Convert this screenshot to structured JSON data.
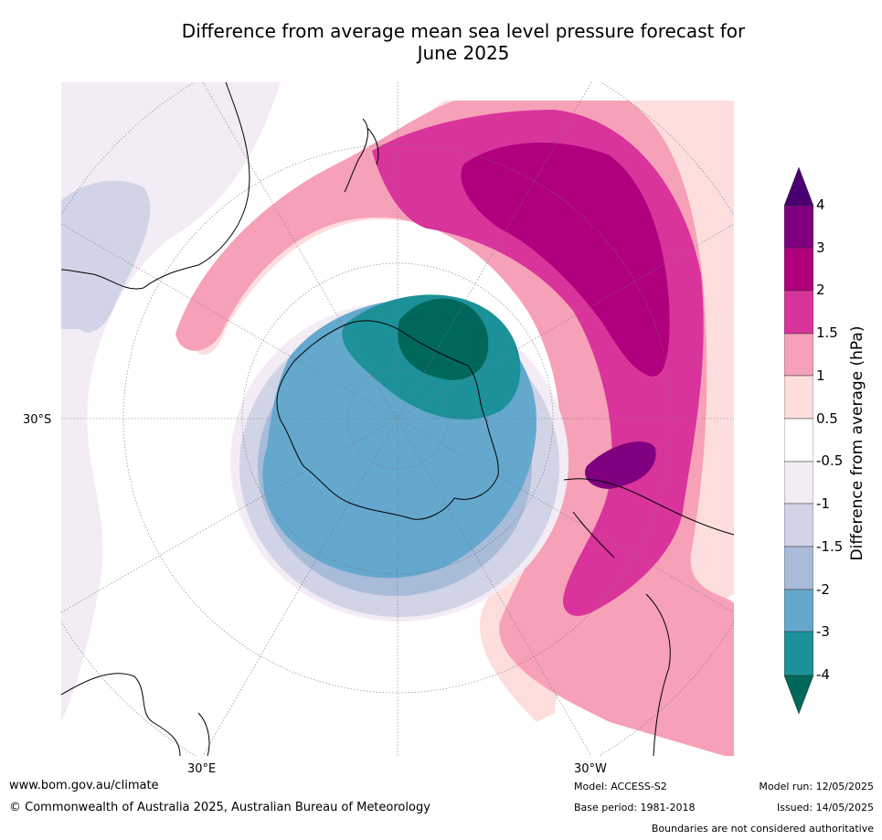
{
  "title_line1": "Difference from average mean sea level pressure forecast for",
  "title_line2": "June 2025",
  "map_labels": {
    "lat_30s": "30°S",
    "lon_30e": "30°E",
    "lon_30w": "30°W"
  },
  "colorbar": {
    "title": "Difference from average (hPa)",
    "ticks": [
      "4",
      "3",
      "2",
      "1.5",
      "1",
      "0.5",
      "-0.5",
      "-1",
      "-1.5",
      "-2",
      "-3",
      "-4"
    ],
    "colors": {
      "over": "#4a0070",
      "b3_4": "#800080",
      "b2_3": "#b0007e",
      "b15_2": "#d9349b",
      "b1_15": "#f6a1b8",
      "b05_1": "#fddedd",
      "neutral": "#ffffff",
      "bm1_m05": "#f3ecf5",
      "bm15_m1": "#d1d3e6",
      "bm2_m15": "#a8bbd9",
      "bm3_m2": "#65a8ce",
      "bm4_m3": "#1c9199",
      "under": "#00685a"
    }
  },
  "footer": {
    "website": "www.bom.gov.au/climate",
    "copyright": "© Commonwealth of Australia 2025, Australian Bureau of Meteorology",
    "model": "Model: ACCESS-S2",
    "base_period": "Base period: 1981-2018",
    "model_run": "Model run: 12/05/2025",
    "issued": "Issued: 14/05/2025",
    "disclaimer": "Boundaries are not considered authoritative"
  }
}
